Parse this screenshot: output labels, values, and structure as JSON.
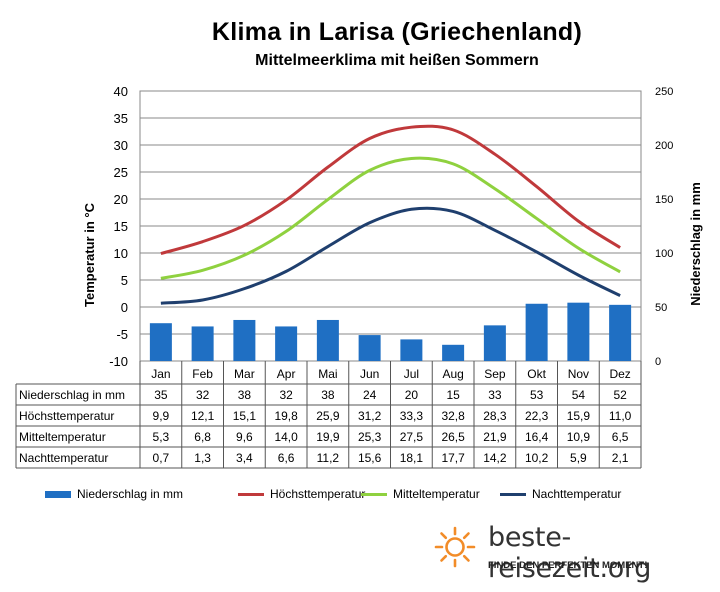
{
  "chart_data": {
    "type": "bar+line",
    "title": "Klima in Larisa (Griechenland)",
    "subtitle": "Mittelmeerklima mit heißen Sommern",
    "ylabel_left": "Temperatur in °C",
    "ylabel_right": "Niederschlag in mm",
    "ylim_left": [
      -10,
      40
    ],
    "ylim_right": [
      0,
      250
    ],
    "yticks_left": [
      "40",
      "35",
      "30",
      "25",
      "20",
      "15",
      "10",
      "5",
      "0",
      "-5",
      "-10"
    ],
    "yticks_right": [
      "250",
      "200",
      "150",
      "100",
      "50",
      "0"
    ],
    "categories": [
      "Jan",
      "Feb",
      "Mar",
      "Apr",
      "Mai",
      "Jun",
      "Jul",
      "Aug",
      "Sep",
      "Okt",
      "Nov",
      "Dez"
    ],
    "series": [
      {
        "name": "Niederschlag in mm",
        "type": "bar",
        "axis": "right",
        "color": "#1f6fc3",
        "values": [
          35,
          32,
          38,
          32,
          38,
          24,
          20,
          15,
          33,
          53,
          54,
          52
        ],
        "labels": [
          "35",
          "32",
          "38",
          "32",
          "38",
          "24",
          "20",
          "15",
          "33",
          "53",
          "54",
          "52"
        ]
      },
      {
        "name": "Höchsttemperatur",
        "type": "line",
        "axis": "left",
        "color": "#c0393b",
        "values": [
          9.9,
          12.1,
          15.1,
          19.8,
          25.9,
          31.2,
          33.3,
          32.8,
          28.3,
          22.3,
          15.9,
          11.0
        ],
        "labels": [
          "9,9",
          "12,1",
          "15,1",
          "19,8",
          "25,9",
          "31,2",
          "33,3",
          "32,8",
          "28,3",
          "22,3",
          "15,9",
          "11,0"
        ]
      },
      {
        "name": "Mitteltemperatur",
        "type": "line",
        "axis": "left",
        "color": "#8fd13f",
        "values": [
          5.3,
          6.8,
          9.6,
          14.0,
          19.9,
          25.3,
          27.5,
          26.5,
          21.9,
          16.4,
          10.9,
          6.5
        ],
        "labels": [
          "5,3",
          "6,8",
          "9,6",
          "14,0",
          "19,9",
          "25,3",
          "27,5",
          "26,5",
          "21,9",
          "16,4",
          "10,9",
          "6,5"
        ]
      },
      {
        "name": "Nachttemperatur",
        "type": "line",
        "axis": "left",
        "color": "#1f3f6e",
        "values": [
          0.7,
          1.3,
          3.4,
          6.6,
          11.2,
          15.6,
          18.1,
          17.7,
          14.2,
          10.2,
          5.9,
          2.1
        ],
        "labels": [
          "0,7",
          "1,3",
          "3,4",
          "6,6",
          "11,2",
          "15,6",
          "18,1",
          "17,7",
          "14,2",
          "10,2",
          "5,9",
          "2,1"
        ]
      }
    ],
    "grid": true,
    "legend": "bottom"
  },
  "brand": {
    "name": "beste-reisezeit.org",
    "tagline": "FINDE DEN PERFEKTEN MOMENT!",
    "logo_icon": "sun-icon",
    "colors": {
      "sun": "#f28c28",
      "text": "#333333"
    }
  }
}
